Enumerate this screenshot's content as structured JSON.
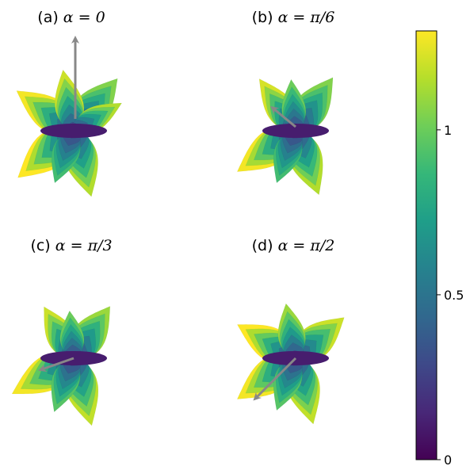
{
  "chart_data": {
    "type": "3d-surface",
    "panels": [
      {
        "label": "(a) ",
        "math": "α = 0",
        "alpha_rad": 0
      },
      {
        "label": "(b) ",
        "math": "α = π/6",
        "alpha_rad": 0.5236
      },
      {
        "label": "(c) ",
        "math": "α = π/3",
        "alpha_rad": 1.0472
      },
      {
        "label": "(d) ",
        "math": "α = π/2",
        "alpha_rad": 1.5708
      }
    ],
    "colorbar": {
      "range": [
        0,
        1.3
      ],
      "ticks": [
        {
          "value": 0,
          "label": "0"
        },
        {
          "value": 0.5,
          "label": "0.5"
        },
        {
          "value": 1,
          "label": "1"
        }
      ],
      "colormap": "viridis"
    },
    "colors": {
      "arrow": "#888888",
      "viridis": [
        "#440154",
        "#482878",
        "#3e4989",
        "#31688e",
        "#26828e",
        "#1f9e89",
        "#35b779",
        "#6ece58",
        "#b5de2b",
        "#fde725"
      ]
    }
  }
}
